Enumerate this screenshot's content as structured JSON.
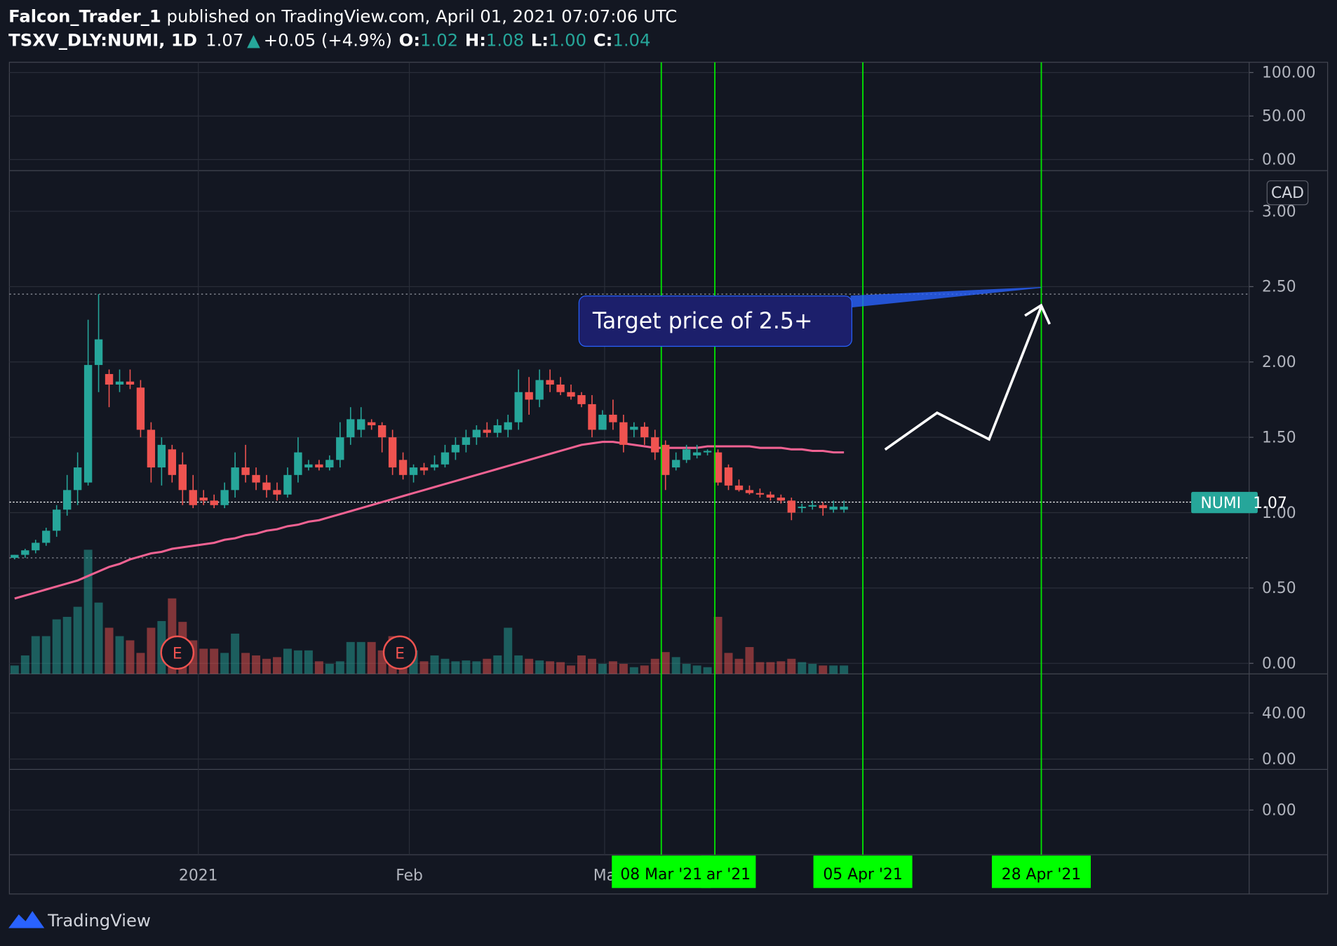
{
  "chart_data": {
    "type": "candlestick",
    "author": "Falcon_Trader_1",
    "published": "published on TradingView.com, April 01, 2021 07:07:06 UTC",
    "symbol": "TSXV_DLY:NUMI, 1D",
    "header_price": "1.07",
    "header_arrow": "▲",
    "header_change": "+0.05 (+4.9%)",
    "ohlc_labels": [
      "O:",
      "H:",
      "L:",
      "C:"
    ],
    "ohlc_values": [
      "1.02",
      "1.08",
      "1.00",
      "1.04"
    ],
    "currency": "CAD",
    "ticker": "NUMI",
    "last_price": 1.07,
    "annotation": "Target price of 2.5+",
    "earnings_marker": "E",
    "earnings_x": [
      15.5,
      36.7
    ],
    "brand": "TradingView",
    "up_color": "#26a69a",
    "down_color": "#ef5350",
    "ma_color": "#f06292",
    "grid": true,
    "xlim": [
      -0.5,
      117.6
    ],
    "xticks": [
      {
        "value": 17.5,
        "label": "2021"
      },
      {
        "value": 37.6,
        "label": "Feb"
      },
      {
        "value": 56.2,
        "label": "Ma"
      }
    ],
    "vlines": [
      {
        "value": 61.6,
        "label": "08 Mar '21"
      },
      {
        "value": 66.7,
        "label": "ar '21"
      },
      {
        "value": 80.8,
        "label": "05 Apr '21"
      },
      {
        "value": 97.8,
        "label": "28 Apr '21"
      }
    ],
    "ylim": [
      -0.07,
      3.27
    ],
    "yticks": [
      {
        "value": 0,
        "label": "0.00"
      },
      {
        "value": 0.5,
        "label": "0.50"
      },
      {
        "value": 1,
        "label": "1.00"
      },
      {
        "value": 1.5,
        "label": "1.50"
      },
      {
        "value": 2,
        "label": "2.00"
      },
      {
        "value": 2.5,
        "label": "2.50"
      },
      {
        "value": 3,
        "label": "3.00"
      }
    ],
    "hlines": [
      2.45,
      0.7
    ],
    "top_pane": {
      "ylim": [
        -12.7,
        111.8
      ],
      "yticks": [
        {
          "value": 100,
          "label": "100.00"
        },
        {
          "value": 50,
          "label": "50.00"
        },
        {
          "value": 0,
          "label": "0.00"
        }
      ]
    },
    "lower_pane": {
      "ylim": [
        -9,
        74
      ],
      "yticks": [
        {
          "value": 40,
          "label": "40.00"
        },
        {
          "value": 0,
          "label": "0.00"
        }
      ]
    },
    "bottom_pane": {
      "ylim": [
        -1.1,
        1
      ],
      "yticks": [
        {
          "value": 0,
          "label": "0.00"
        }
      ]
    },
    "volume_lim": [
      0,
      600
    ],
    "volumes": [
      10,
      22,
      45,
      45,
      65,
      68,
      80,
      148,
      85,
      55,
      45,
      40,
      25,
      55,
      63,
      90,
      62,
      40,
      30,
      30,
      25,
      48,
      25,
      22,
      18,
      20,
      30,
      28,
      28,
      15,
      12,
      15,
      38,
      38,
      38,
      28,
      45,
      28,
      28,
      15,
      22,
      18,
      15,
      16,
      15,
      18,
      22,
      55,
      22,
      18,
      16,
      15,
      14,
      10,
      22,
      18,
      12,
      15,
      12,
      8,
      10,
      18,
      26,
      20,
      12,
      10,
      8,
      68,
      25,
      18,
      32,
      14,
      14,
      15,
      18,
      14,
      12,
      10,
      10,
      10
    ],
    "ma": [
      0.43,
      0.45,
      0.47,
      0.49,
      0.51,
      0.53,
      0.55,
      0.58,
      0.61,
      0.64,
      0.66,
      0.69,
      0.71,
      0.73,
      0.74,
      0.76,
      0.77,
      0.78,
      0.79,
      0.8,
      0.82,
      0.83,
      0.85,
      0.86,
      0.88,
      0.89,
      0.91,
      0.92,
      0.94,
      0.95,
      0.97,
      0.99,
      1.01,
      1.03,
      1.05,
      1.07,
      1.09,
      1.11,
      1.13,
      1.15,
      1.17,
      1.19,
      1.21,
      1.23,
      1.25,
      1.27,
      1.29,
      1.31,
      1.33,
      1.35,
      1.37,
      1.39,
      1.41,
      1.43,
      1.45,
      1.46,
      1.47,
      1.47,
      1.46,
      1.45,
      1.44,
      1.43,
      1.43,
      1.43,
      1.43,
      1.43,
      1.44,
      1.44,
      1.44,
      1.44,
      1.44,
      1.43,
      1.43,
      1.43,
      1.42,
      1.42,
      1.41,
      1.41,
      1.4,
      1.4
    ],
    "candles": [
      [
        0.7,
        0.72,
        0.69,
        0.72
      ],
      [
        0.72,
        0.76,
        0.7,
        0.75
      ],
      [
        0.75,
        0.82,
        0.73,
        0.8
      ],
      [
        0.8,
        0.9,
        0.78,
        0.88
      ],
      [
        0.88,
        1.05,
        0.84,
        1.02
      ],
      [
        1.02,
        1.25,
        0.98,
        1.15
      ],
      [
        1.15,
        1.4,
        1.05,
        1.3
      ],
      [
        1.2,
        2.28,
        1.18,
        1.98
      ],
      [
        1.98,
        2.45,
        1.8,
        2.15
      ],
      [
        1.92,
        1.95,
        1.7,
        1.85
      ],
      [
        1.85,
        1.95,
        1.8,
        1.87
      ],
      [
        1.87,
        1.95,
        1.82,
        1.85
      ],
      [
        1.83,
        1.88,
        1.5,
        1.55
      ],
      [
        1.55,
        1.6,
        1.2,
        1.3
      ],
      [
        1.3,
        1.5,
        1.18,
        1.45
      ],
      [
        1.42,
        1.45,
        1.2,
        1.25
      ],
      [
        1.32,
        1.4,
        1.05,
        1.15
      ],
      [
        1.15,
        1.25,
        1.03,
        1.05
      ],
      [
        1.1,
        1.15,
        1.05,
        1.08
      ],
      [
        1.08,
        1.12,
        1.03,
        1.05
      ],
      [
        1.05,
        1.2,
        1.03,
        1.15
      ],
      [
        1.15,
        1.4,
        1.1,
        1.3
      ],
      [
        1.3,
        1.45,
        1.2,
        1.25
      ],
      [
        1.25,
        1.3,
        1.15,
        1.2
      ],
      [
        1.2,
        1.25,
        1.1,
        1.15
      ],
      [
        1.15,
        1.2,
        1.08,
        1.12
      ],
      [
        1.12,
        1.3,
        1.1,
        1.25
      ],
      [
        1.25,
        1.5,
        1.2,
        1.4
      ],
      [
        1.3,
        1.35,
        1.28,
        1.32
      ],
      [
        1.32,
        1.35,
        1.28,
        1.3
      ],
      [
        1.3,
        1.38,
        1.28,
        1.35
      ],
      [
        1.35,
        1.6,
        1.3,
        1.5
      ],
      [
        1.5,
        1.7,
        1.45,
        1.62
      ],
      [
        1.55,
        1.7,
        1.5,
        1.62
      ],
      [
        1.6,
        1.62,
        1.55,
        1.58
      ],
      [
        1.58,
        1.6,
        1.4,
        1.5
      ],
      [
        1.5,
        1.55,
        1.25,
        1.3
      ],
      [
        1.35,
        1.4,
        1.22,
        1.25
      ],
      [
        1.25,
        1.32,
        1.2,
        1.3
      ],
      [
        1.3,
        1.33,
        1.25,
        1.28
      ],
      [
        1.3,
        1.38,
        1.28,
        1.32
      ],
      [
        1.32,
        1.45,
        1.3,
        1.4
      ],
      [
        1.4,
        1.5,
        1.35,
        1.45
      ],
      [
        1.45,
        1.55,
        1.4,
        1.5
      ],
      [
        1.5,
        1.58,
        1.45,
        1.55
      ],
      [
        1.55,
        1.6,
        1.5,
        1.53
      ],
      [
        1.53,
        1.62,
        1.5,
        1.58
      ],
      [
        1.55,
        1.65,
        1.5,
        1.6
      ],
      [
        1.6,
        1.95,
        1.55,
        1.8
      ],
      [
        1.8,
        1.9,
        1.65,
        1.75
      ],
      [
        1.75,
        1.95,
        1.7,
        1.88
      ],
      [
        1.88,
        1.95,
        1.8,
        1.85
      ],
      [
        1.85,
        1.9,
        1.78,
        1.8
      ],
      [
        1.8,
        1.85,
        1.75,
        1.77
      ],
      [
        1.78,
        1.8,
        1.7,
        1.72
      ],
      [
        1.72,
        1.78,
        1.5,
        1.55
      ],
      [
        1.55,
        1.68,
        1.55,
        1.65
      ],
      [
        1.65,
        1.75,
        1.55,
        1.6
      ],
      [
        1.6,
        1.65,
        1.4,
        1.45
      ],
      [
        1.55,
        1.6,
        1.5,
        1.57
      ],
      [
        1.57,
        1.6,
        1.45,
        1.5
      ],
      [
        1.5,
        1.55,
        1.35,
        1.4
      ],
      [
        1.45,
        1.48,
        1.15,
        1.25
      ],
      [
        1.3,
        1.4,
        1.28,
        1.35
      ],
      [
        1.35,
        1.45,
        1.33,
        1.42
      ],
      [
        1.38,
        1.45,
        1.36,
        1.4
      ],
      [
        1.4,
        1.42,
        1.38,
        1.41
      ],
      [
        1.4,
        1.42,
        1.18,
        1.2
      ],
      [
        1.3,
        1.32,
        1.15,
        1.18
      ],
      [
        1.18,
        1.22,
        1.14,
        1.15
      ],
      [
        1.15,
        1.18,
        1.12,
        1.13
      ],
      [
        1.13,
        1.16,
        1.1,
        1.12
      ],
      [
        1.12,
        1.14,
        1.08,
        1.1
      ],
      [
        1.1,
        1.12,
        1.06,
        1.08
      ],
      [
        1.08,
        1.1,
        0.95,
        1.0
      ],
      [
        1.03,
        1.06,
        1.0,
        1.04
      ],
      [
        1.04,
        1.08,
        1.02,
        1.05
      ],
      [
        1.05,
        1.07,
        0.98,
        1.03
      ],
      [
        1.02,
        1.08,
        1.0,
        1.04
      ],
      [
        1.02,
        1.08,
        1.0,
        1.04
      ]
    ]
  }
}
